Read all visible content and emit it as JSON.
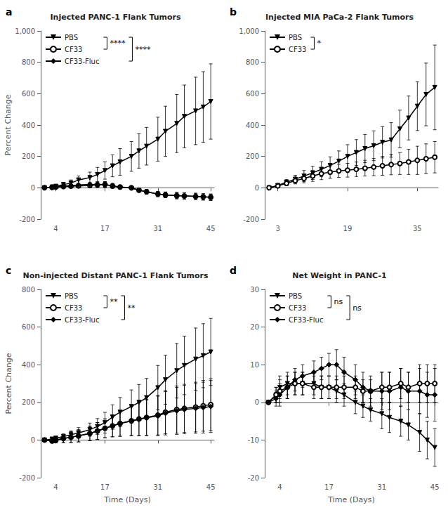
{
  "chart_data": [
    {
      "type": "line",
      "title": "Injected PANC-1 Flank Tumors",
      "ylabel": "Percent Change",
      "x": [
        1,
        3,
        4,
        6,
        8,
        10,
        13,
        15,
        17,
        19,
        21,
        24,
        26,
        28,
        31,
        33,
        36,
        38,
        41,
        43,
        45
      ],
      "xlim": [
        0,
        45.9
      ],
      "xticks": [
        4,
        17,
        31,
        45
      ],
      "ylim": [
        -200,
        1000
      ],
      "yticks": [
        -200,
        0,
        200,
        400,
        600,
        800,
        1000
      ],
      "grid": false,
      "legend": "upper left",
      "series": [
        {
          "name": "PBS",
          "color": "#000000",
          "marker": "triangle-down",
          "line_style": "solid",
          "values": [
            0,
            5,
            10,
            20,
            30,
            50,
            65,
            85,
            110,
            140,
            165,
            200,
            235,
            265,
            310,
            360,
            410,
            455,
            490,
            515,
            550
          ],
          "errors": [
            0,
            5,
            10,
            15,
            20,
            25,
            35,
            45,
            55,
            70,
            85,
            95,
            110,
            120,
            140,
            160,
            185,
            200,
            215,
            225,
            240
          ]
        },
        {
          "name": "CF33",
          "color": "#000000",
          "marker": "circle-open",
          "line_style": "solid",
          "values": [
            0,
            3,
            5,
            8,
            10,
            12,
            15,
            18,
            22,
            12,
            5,
            0,
            -15,
            -25,
            -40,
            -45,
            -50,
            -52,
            -55,
            -58,
            -60
          ],
          "errors": [
            0,
            3,
            4,
            6,
            8,
            10,
            12,
            14,
            18,
            15,
            12,
            10,
            12,
            14,
            16,
            18,
            20,
            20,
            20,
            20,
            20
          ]
        },
        {
          "name": "CF33-Fluc",
          "color": "#000000",
          "marker": "diamond",
          "line_style": "solid",
          "values": [
            0,
            5,
            8,
            12,
            14,
            18,
            22,
            22,
            20,
            12,
            5,
            -2,
            -15,
            -25,
            -40,
            -45,
            -50,
            -52,
            -55,
            -58,
            -60
          ],
          "errors": [
            0,
            3,
            4,
            6,
            8,
            10,
            12,
            14,
            18,
            15,
            12,
            10,
            12,
            14,
            16,
            18,
            20,
            20,
            20,
            20,
            20
          ]
        }
      ],
      "annotations": [
        {
          "text": "a"
        },
        {
          "text": "****",
          "between": [
            "PBS",
            "CF33"
          ]
        },
        {
          "text": "****",
          "between": [
            "PBS",
            "CF33-Fluc"
          ]
        }
      ]
    },
    {
      "type": "line",
      "title": "Injected MIA PaCa-2 Flank Tumors",
      "x": [
        1,
        3,
        5,
        7,
        9,
        11,
        13,
        15,
        17,
        19,
        21,
        23,
        25,
        27,
        29,
        31,
        33,
        35,
        37,
        39
      ],
      "xlim": [
        0,
        39.78
      ],
      "xticks": [
        3,
        19,
        35
      ],
      "ylim": [
        -200,
        1000
      ],
      "yticks": [
        -200,
        0,
        200,
        400,
        600,
        800,
        1000
      ],
      "grid": false,
      "legend": "upper left",
      "series": [
        {
          "name": "PBS",
          "color": "#000000",
          "marker": "triangle-down",
          "line_style": "solid",
          "values": [
            0,
            15,
            35,
            55,
            75,
            95,
            118,
            142,
            170,
            200,
            225,
            250,
            268,
            290,
            305,
            375,
            445,
            520,
            595,
            640
          ],
          "errors": [
            0,
            10,
            18,
            25,
            35,
            42,
            48,
            55,
            65,
            75,
            82,
            90,
            95,
            100,
            110,
            120,
            140,
            155,
            200,
            270
          ]
        },
        {
          "name": "CF33",
          "color": "#000000",
          "marker": "circle-open",
          "line_style": "solid",
          "values": [
            0,
            12,
            28,
            45,
            60,
            75,
            90,
            100,
            108,
            112,
            118,
            125,
            132,
            140,
            148,
            155,
            165,
            175,
            185,
            195
          ],
          "errors": [
            0,
            8,
            15,
            20,
            28,
            34,
            38,
            40,
            42,
            44,
            46,
            50,
            55,
            60,
            65,
            70,
            80,
            90,
            95,
            100
          ]
        }
      ],
      "annotations": [
        {
          "text": "b"
        },
        {
          "text": "*",
          "between": [
            "PBS",
            "CF33"
          ]
        }
      ]
    },
    {
      "type": "line",
      "title": "Non-injected Distant PANC-1 Flank Tumors",
      "xlabel": "Time (Days)",
      "ylabel": "Percent Change",
      "x": [
        1,
        3,
        4,
        6,
        8,
        10,
        13,
        15,
        17,
        19,
        21,
        24,
        26,
        28,
        31,
        33,
        36,
        38,
        41,
        43,
        45
      ],
      "xlim": [
        0,
        45.9
      ],
      "xticks": [
        4,
        17,
        31,
        45
      ],
      "ylim": [
        -200,
        800
      ],
      "yticks": [
        -200,
        0,
        200,
        400,
        600,
        800
      ],
      "grid": false,
      "legend": "upper left",
      "series": [
        {
          "name": "PBS",
          "color": "#000000",
          "marker": "triangle-down",
          "line_style": "solid",
          "values": [
            0,
            5,
            10,
            18,
            28,
            38,
            55,
            72,
            92,
            122,
            148,
            178,
            200,
            225,
            278,
            320,
            368,
            396,
            430,
            448,
            468
          ],
          "errors": [
            0,
            5,
            8,
            14,
            20,
            28,
            35,
            42,
            55,
            65,
            78,
            88,
            95,
            102,
            118,
            130,
            145,
            155,
            165,
            170,
            178
          ]
        },
        {
          "name": "CF33",
          "color": "#000000",
          "marker": "circle-open",
          "line_style": "solid",
          "values": [
            0,
            -5,
            0,
            8,
            15,
            22,
            35,
            48,
            62,
            75,
            88,
            102,
            112,
            120,
            132,
            148,
            162,
            168,
            175,
            182,
            188
          ],
          "errors": [
            0,
            10,
            15,
            22,
            28,
            32,
            38,
            45,
            50,
            58,
            68,
            78,
            88,
            95,
            105,
            115,
            125,
            128,
            132,
            135,
            138
          ]
        },
        {
          "name": "CF33-Fluc",
          "color": "#000000",
          "marker": "diamond",
          "line_style": "solid",
          "values": [
            0,
            -5,
            0,
            8,
            15,
            22,
            35,
            48,
            62,
            75,
            88,
            100,
            110,
            118,
            128,
            142,
            155,
            162,
            168,
            172,
            178
          ],
          "errors": [
            0,
            10,
            15,
            22,
            28,
            32,
            38,
            45,
            50,
            58,
            68,
            78,
            88,
            95,
            105,
            115,
            125,
            128,
            132,
            135,
            138
          ]
        }
      ],
      "annotations": [
        {
          "text": "c"
        },
        {
          "text": "**",
          "between": [
            "PBS",
            "CF33"
          ]
        },
        {
          "text": "**",
          "between": [
            "PBS",
            "CF33-Fluc"
          ]
        }
      ]
    },
    {
      "type": "line",
      "title": "Net Weight in PANC-1",
      "xlabel": "Time (Days)",
      "x": [
        1,
        3,
        4,
        6,
        8,
        10,
        13,
        15,
        17,
        19,
        21,
        24,
        26,
        28,
        31,
        33,
        36,
        38,
        41,
        43,
        45
      ],
      "xlim": [
        0,
        45.9
      ],
      "xticks": [
        4,
        17,
        31,
        45
      ],
      "ylim": [
        -20,
        30
      ],
      "yticks": [
        -20,
        -10,
        0,
        10,
        20,
        30
      ],
      "grid": false,
      "legend": "upper left",
      "series": [
        {
          "name": "PBS",
          "color": "#000000",
          "marker": "triangle-down",
          "line_style": "solid",
          "values": [
            0,
            2,
            4,
            5,
            5,
            5,
            5,
            4,
            4,
            3,
            2,
            0,
            -1,
            -2,
            -3,
            -4,
            -5,
            -6,
            -8,
            -10,
            -12
          ],
          "errors": [
            0,
            2,
            3,
            3,
            3,
            3,
            3,
            3,
            3,
            3,
            3,
            3,
            3,
            3,
            4,
            4,
            4,
            4,
            5,
            5,
            5
          ]
        },
        {
          "name": "CF33",
          "color": "#000000",
          "marker": "circle-open",
          "line_style": "solid",
          "values": [
            0,
            2,
            3,
            4,
            5,
            5,
            4,
            4,
            4,
            4,
            4,
            4,
            3,
            3,
            4,
            4,
            5,
            4,
            5,
            5,
            5
          ],
          "errors": [
            0,
            2,
            3,
            3,
            3,
            3,
            3,
            3,
            3,
            3,
            3,
            3,
            3,
            3,
            4,
            4,
            4,
            4,
            5,
            5,
            5
          ]
        },
        {
          "name": "CF33-Fluc",
          "color": "#000000",
          "marker": "diamond",
          "line_style": "solid",
          "values": [
            0,
            1,
            2,
            4,
            6,
            7,
            8,
            9,
            10,
            10,
            8,
            6,
            4,
            3,
            3,
            3,
            4,
            3,
            3,
            2,
            2
          ],
          "errors": [
            0,
            2,
            3,
            3,
            3,
            3,
            3,
            3,
            3,
            4,
            4,
            4,
            4,
            4,
            5,
            5,
            5,
            5,
            6,
            6,
            7
          ]
        }
      ],
      "annotations": [
        {
          "text": "d"
        },
        {
          "text": "ns",
          "between": [
            "PBS",
            "CF33"
          ]
        },
        {
          "text": "ns",
          "between": [
            "PBS",
            "CF33-Fluc"
          ]
        }
      ]
    }
  ]
}
